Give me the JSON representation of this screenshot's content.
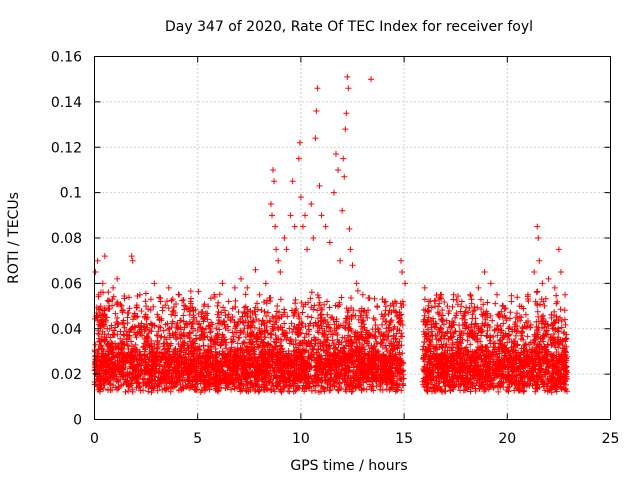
{
  "chart_data": {
    "type": "scatter",
    "title": "Day 347 of 2020, Rate Of TEC Index for receiver foyl",
    "xlabel": "GPS time / hours",
    "ylabel": "ROTI / TECUs",
    "xlim": [
      0,
      25
    ],
    "ylim": [
      0,
      0.16
    ],
    "xticks": [
      0,
      5,
      10,
      15,
      20,
      25
    ],
    "yticks": [
      0,
      0.02,
      0.04,
      0.06,
      0.08,
      0.1,
      0.12,
      0.14,
      0.16
    ],
    "xtick_labels": [
      "0",
      "5",
      "10",
      "15",
      "20",
      "25"
    ],
    "ytick_labels": [
      "0",
      "0.02",
      "0.04",
      "0.06",
      "0.08",
      "0.1",
      "0.12",
      "0.14",
      "0.16"
    ],
    "grid": true,
    "marker": "plus",
    "color": "#ff0000",
    "series": [
      {
        "name": "ROTI",
        "points": [
          [
            0.05,
            0.065
          ],
          [
            0.15,
            0.07
          ],
          [
            0.2,
            0.055
          ],
          [
            0.3,
            0.05
          ],
          [
            0.4,
            0.06
          ],
          [
            0.5,
            0.072
          ],
          [
            0.6,
            0.045
          ],
          [
            0.7,
            0.052
          ],
          [
            0.9,
            0.058
          ],
          [
            1.1,
            0.062
          ],
          [
            1.3,
            0.05
          ],
          [
            1.6,
            0.045
          ],
          [
            1.8,
            0.072
          ],
          [
            1.85,
            0.07
          ],
          [
            2.2,
            0.055
          ],
          [
            2.5,
            0.05
          ],
          [
            2.9,
            0.06
          ],
          [
            3.2,
            0.052
          ],
          [
            3.6,
            0.058
          ],
          [
            4.1,
            0.055
          ],
          [
            4.4,
            0.05
          ],
          [
            4.8,
            0.048
          ],
          [
            5.3,
            0.05
          ],
          [
            5.8,
            0.055
          ],
          [
            6.2,
            0.06
          ],
          [
            6.5,
            0.052
          ],
          [
            6.8,
            0.058
          ],
          [
            7.1,
            0.062
          ],
          [
            7.4,
            0.058
          ],
          [
            7.8,
            0.066
          ],
          [
            8.0,
            0.055
          ],
          [
            8.3,
            0.06
          ],
          [
            8.55,
            0.095
          ],
          [
            8.6,
            0.09
          ],
          [
            8.65,
            0.11
          ],
          [
            8.7,
            0.105
          ],
          [
            8.75,
            0.085
          ],
          [
            8.8,
            0.075
          ],
          [
            8.9,
            0.07
          ],
          [
            9.0,
            0.065
          ],
          [
            9.2,
            0.08
          ],
          [
            9.3,
            0.075
          ],
          [
            9.5,
            0.09
          ],
          [
            9.6,
            0.105
          ],
          [
            9.7,
            0.085
          ],
          [
            9.9,
            0.115
          ],
          [
            9.95,
            0.122
          ],
          [
            10.0,
            0.098
          ],
          [
            10.1,
            0.085
          ],
          [
            10.2,
            0.09
          ],
          [
            10.3,
            0.075
          ],
          [
            10.5,
            0.095
          ],
          [
            10.6,
            0.08
          ],
          [
            10.7,
            0.124
          ],
          [
            10.75,
            0.136
          ],
          [
            10.8,
            0.146
          ],
          [
            10.9,
            0.103
          ],
          [
            11.0,
            0.09
          ],
          [
            11.2,
            0.085
          ],
          [
            11.4,
            0.078
          ],
          [
            11.6,
            0.1
          ],
          [
            11.7,
            0.117
          ],
          [
            11.8,
            0.11
          ],
          [
            11.9,
            0.07
          ],
          [
            12.0,
            0.092
          ],
          [
            12.05,
            0.115
          ],
          [
            12.1,
            0.107
          ],
          [
            12.15,
            0.128
          ],
          [
            12.2,
            0.135
          ],
          [
            12.25,
            0.151
          ],
          [
            12.3,
            0.146
          ],
          [
            12.35,
            0.084
          ],
          [
            12.4,
            0.075
          ],
          [
            12.5,
            0.068
          ],
          [
            12.7,
            0.06
          ],
          [
            13.0,
            0.055
          ],
          [
            13.4,
            0.15
          ],
          [
            13.7,
            0.05
          ],
          [
            14.1,
            0.048
          ],
          [
            14.5,
            0.05
          ],
          [
            14.85,
            0.07
          ],
          [
            14.9,
            0.065
          ],
          [
            15.05,
            0.06
          ],
          [
            16.0,
            0.058
          ],
          [
            16.2,
            0.052
          ],
          [
            16.5,
            0.05
          ],
          [
            16.8,
            0.055
          ],
          [
            17.1,
            0.05
          ],
          [
            17.4,
            0.055
          ],
          [
            17.8,
            0.052
          ],
          [
            18.2,
            0.055
          ],
          [
            18.6,
            0.058
          ],
          [
            18.9,
            0.065
          ],
          [
            19.2,
            0.06
          ],
          [
            19.5,
            0.055
          ],
          [
            19.8,
            0.05
          ],
          [
            20.2,
            0.052
          ],
          [
            20.6,
            0.05
          ],
          [
            21.0,
            0.055
          ],
          [
            21.3,
            0.065
          ],
          [
            21.45,
            0.085
          ],
          [
            21.5,
            0.08
          ],
          [
            21.55,
            0.07
          ],
          [
            21.7,
            0.06
          ],
          [
            22.0,
            0.062
          ],
          [
            22.3,
            0.058
          ],
          [
            22.5,
            0.075
          ],
          [
            22.6,
            0.065
          ],
          [
            22.8,
            0.055
          ]
        ]
      }
    ]
  }
}
